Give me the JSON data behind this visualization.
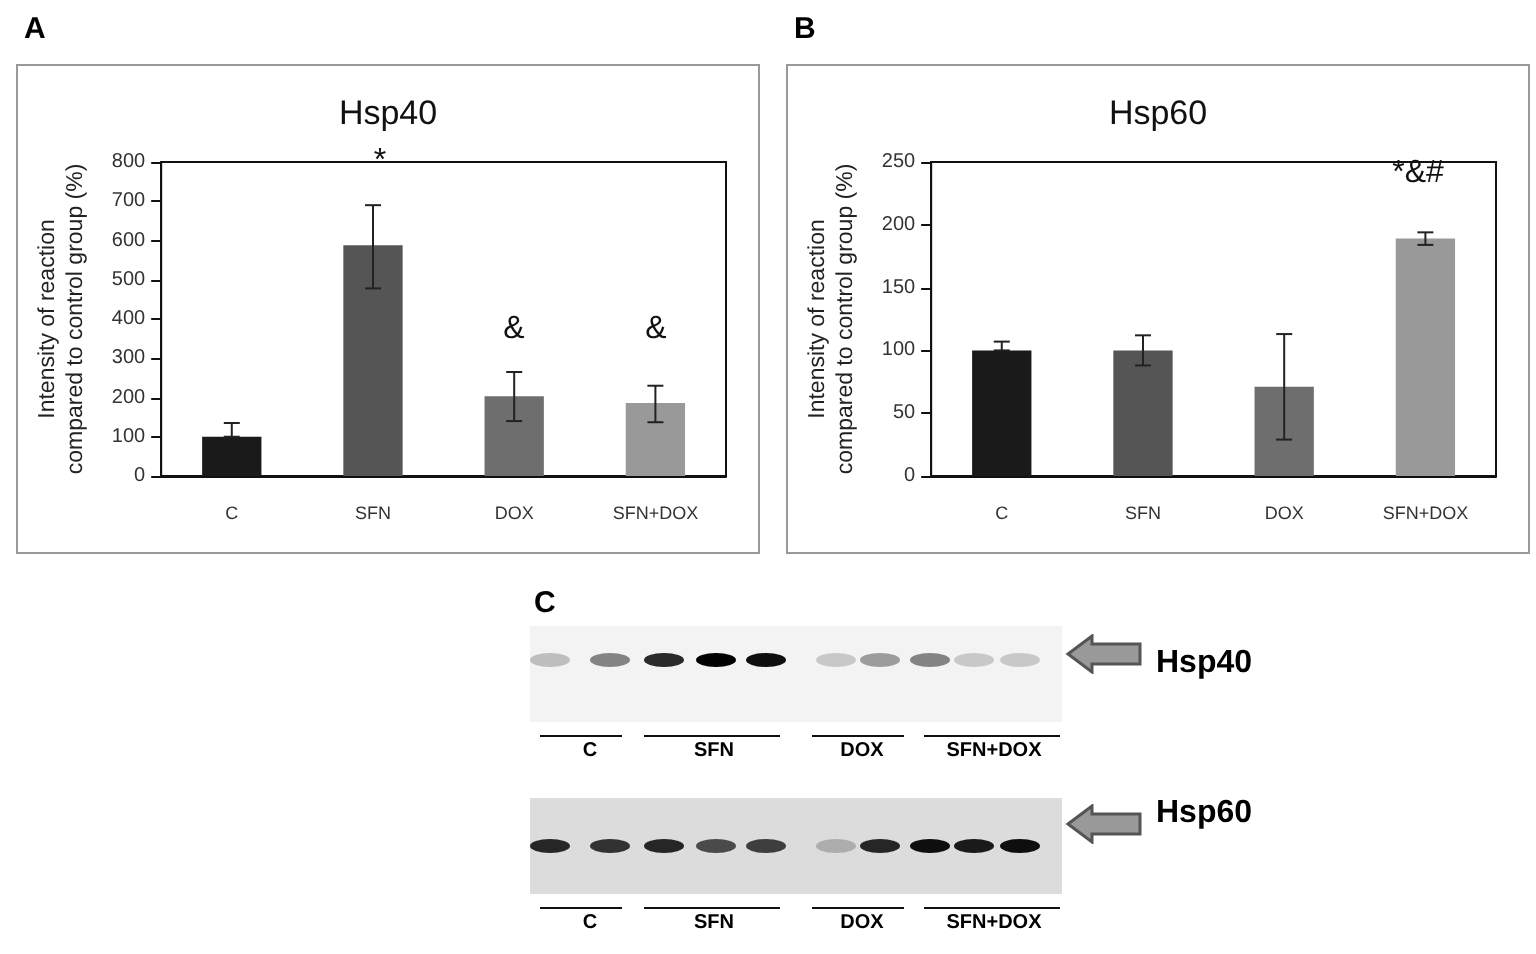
{
  "chart_data": [
    {
      "type": "bar",
      "title": "Hsp40",
      "ylabel": "Intensity of reaction compared to control group (%)",
      "categories": [
        "C",
        "SFN",
        "DOX",
        "SFN+DOX"
      ],
      "values": [
        100,
        588,
        203,
        186
      ],
      "colors": [
        "#1a1a1a",
        "#555555",
        "#6e6e6e",
        "#999999"
      ],
      "errors": [
        [
          100,
          135
        ],
        [
          478,
          690
        ],
        [
          140,
          265
        ],
        [
          137,
          230
        ]
      ],
      "ylim": [
        0,
        800
      ],
      "yticks": [
        0,
        100,
        200,
        300,
        400,
        500,
        600,
        700,
        800
      ],
      "grid": false,
      "annotations": [
        "A",
        "*",
        "&",
        "&"
      ]
    },
    {
      "type": "bar",
      "title": "Hsp60",
      "ylabel": "Intensity of reaction compared to control group (%)",
      "categories": [
        "C",
        "SFN",
        "DOX",
        "SFN+DOX"
      ],
      "values": [
        100,
        100,
        71,
        189
      ],
      "colors": [
        "#1a1a1a",
        "#555555",
        "#6e6e6e",
        "#999999"
      ],
      "errors": [
        [
          100,
          107
        ],
        [
          88,
          112
        ],
        [
          29,
          113
        ],
        [
          184,
          194
        ]
      ],
      "ylim": [
        0,
        250
      ],
      "yticks": [
        0,
        50,
        100,
        150,
        200,
        250
      ],
      "grid": false,
      "annotations": [
        "B",
        "*&#"
      ]
    },
    {
      "type": "other",
      "annotations": [
        "C",
        "Hsp40",
        "Hsp60",
        "C",
        "SFN",
        "DOX",
        "SFN+DOX",
        "C",
        "SFN",
        "DOX",
        "SFN+DOX"
      ]
    }
  ]
}
